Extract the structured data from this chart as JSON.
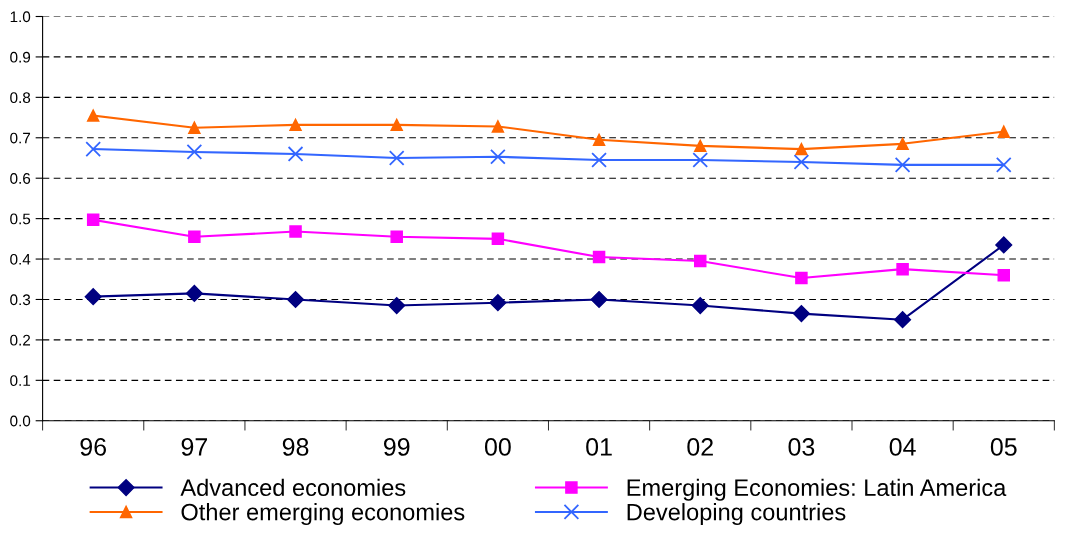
{
  "chart_data": {
    "type": "line",
    "categories": [
      "96",
      "97",
      "98",
      "99",
      "00",
      "01",
      "02",
      "03",
      "04",
      "05"
    ],
    "ylim": [
      0,
      1
    ],
    "yticks": [
      {
        "value": 0,
        "label": "0.0"
      },
      {
        "value": 0.1,
        "label": "0.1"
      },
      {
        "value": 0.2,
        "label": "0.2"
      },
      {
        "value": 0.3,
        "label": "0.3"
      },
      {
        "value": 0.4,
        "label": "0.4"
      },
      {
        "value": 0.5,
        "label": "0.5"
      },
      {
        "value": 0.6,
        "label": "0.6"
      },
      {
        "value": 0.7,
        "label": "0.7"
      },
      {
        "value": 0.8,
        "label": "0.8"
      },
      {
        "value": 0.9,
        "label": "0.9"
      },
      {
        "value": 1,
        "label": "1.0"
      }
    ],
    "grid": "y",
    "legend": "bottom",
    "series": [
      {
        "name": "Advanced economies",
        "color": "#000080",
        "marker": "diamond",
        "values": [
          0.307,
          0.315,
          0.3,
          0.285,
          0.292,
          0.3,
          0.285,
          0.265,
          0.25,
          0.435
        ]
      },
      {
        "name": "Emerging Economies: Latin America",
        "color": "#ff00ff",
        "marker": "square",
        "values": [
          0.497,
          0.455,
          0.468,
          0.455,
          0.45,
          0.405,
          0.395,
          0.353,
          0.375,
          0.36
        ]
      },
      {
        "name": "Other emerging economies",
        "color": "#ff6600",
        "marker": "triangle",
        "values": [
          0.755,
          0.725,
          0.732,
          0.732,
          0.728,
          0.695,
          0.68,
          0.672,
          0.685,
          0.715
        ]
      },
      {
        "name": "Developing countries",
        "color": "#3366ff",
        "marker": "cross",
        "values": [
          0.672,
          0.665,
          0.66,
          0.65,
          0.653,
          0.645,
          0.645,
          0.64,
          0.633,
          0.633
        ]
      }
    ]
  }
}
